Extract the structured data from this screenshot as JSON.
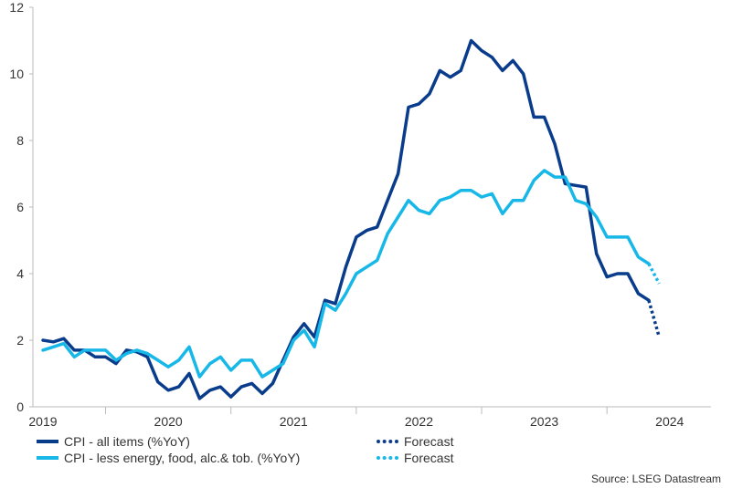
{
  "chart_data": {
    "type": "line",
    "title": "",
    "xlabel": "",
    "ylabel": "",
    "ylim": [
      0,
      12
    ],
    "yticks": [
      0,
      2,
      4,
      6,
      8,
      10,
      12
    ],
    "xlim": [
      2018.92,
      2024.33
    ],
    "year_labels": [
      {
        "label": "2019",
        "at": 2019.0
      },
      {
        "label": "2020",
        "at": 2020.0
      },
      {
        "label": "2021",
        "at": 2021.0
      },
      {
        "label": "2022",
        "at": 2022.0
      },
      {
        "label": "2023",
        "at": 2023.0
      },
      {
        "label": "2024",
        "at": 2024.0
      }
    ],
    "series": [
      {
        "name": "CPI - all items (%YoY)",
        "color": "#0a3c8c",
        "start": "2019-01",
        "values": [
          2.0,
          1.95,
          2.05,
          1.7,
          1.7,
          1.5,
          1.5,
          1.3,
          1.7,
          1.65,
          1.5,
          0.75,
          0.5,
          0.6,
          1.0,
          0.25,
          0.5,
          0.6,
          0.3,
          0.6,
          0.7,
          0.4,
          0.7,
          1.4,
          2.1,
          2.5,
          2.1,
          3.2,
          3.1,
          4.2,
          5.1,
          5.3,
          5.4,
          6.2,
          7.0,
          9.0,
          9.1,
          9.4,
          10.1,
          9.9,
          10.1,
          11.0,
          10.7,
          10.5,
          10.1,
          10.4,
          10.0,
          8.7,
          8.7,
          7.9,
          6.7,
          6.65,
          6.6,
          4.6,
          3.9,
          4.0,
          4.0,
          3.4,
          3.2
        ],
        "forecast": [
          3.2,
          2.1
        ]
      },
      {
        "name": "CPI - less energy, food, alc.& tob. (%YoY)",
        "color": "#17b8e8",
        "start": "2019-01",
        "values": [
          1.7,
          1.8,
          1.9,
          1.5,
          1.7,
          1.7,
          1.7,
          1.4,
          1.6,
          1.7,
          1.6,
          1.4,
          1.2,
          1.4,
          1.8,
          0.9,
          1.3,
          1.5,
          1.1,
          1.4,
          1.4,
          0.9,
          1.1,
          1.3,
          2.0,
          2.3,
          1.8,
          3.1,
          2.9,
          3.4,
          4.0,
          4.2,
          4.4,
          5.2,
          5.7,
          6.2,
          5.9,
          5.8,
          6.2,
          6.3,
          6.5,
          6.5,
          6.3,
          6.4,
          5.8,
          6.2,
          6.2,
          6.8,
          7.1,
          6.9,
          6.9,
          6.2,
          6.1,
          5.7,
          5.1,
          5.1,
          5.1,
          4.5,
          4.3
        ],
        "forecast": [
          4.3,
          3.7
        ]
      }
    ],
    "legend": [
      {
        "label": "CPI - all items (%YoY)",
        "color": "#0a3c8c",
        "style": "solid"
      },
      {
        "label": "Forecast",
        "color": "#0a3c8c",
        "style": "dotted"
      },
      {
        "label": "CPI - less energy, food, alc.& tob. (%YoY)",
        "color": "#17b8e8",
        "style": "solid"
      },
      {
        "label": "Forecast",
        "color": "#17b8e8",
        "style": "dotted"
      }
    ],
    "source": "Source: LSEG Datastream"
  }
}
